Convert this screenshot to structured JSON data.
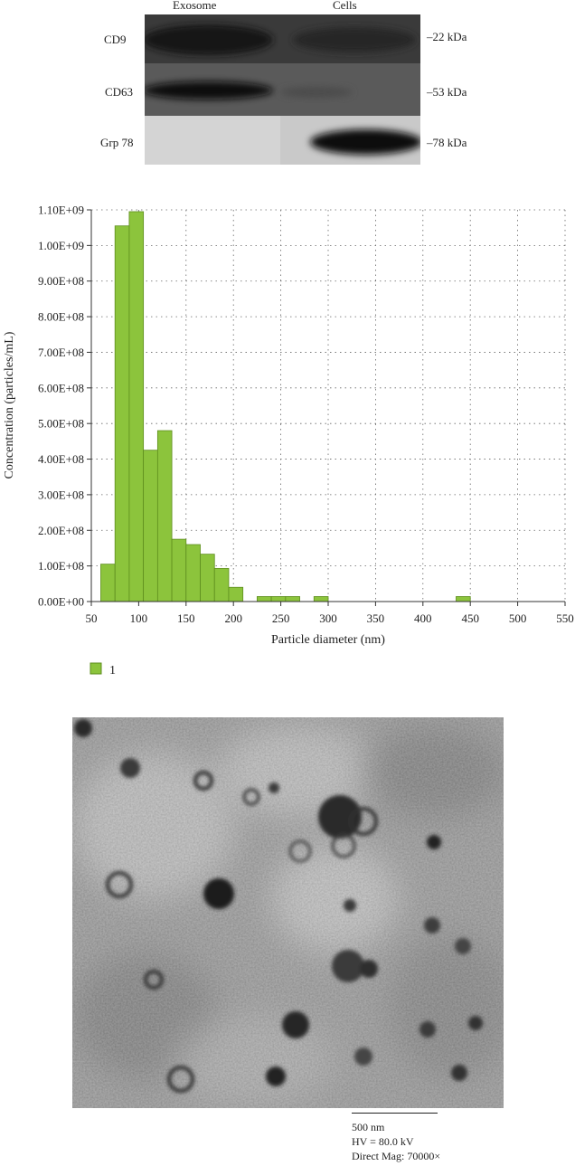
{
  "blot": {
    "columns": [
      "Exosome",
      "Cells"
    ],
    "rows": [
      {
        "name": "CD9",
        "marker": "–22 kDa"
      },
      {
        "name": "CD63",
        "marker": "–53 kDa"
      },
      {
        "name": "Grp 78",
        "marker": "–78 kDa"
      }
    ]
  },
  "chart_data": {
    "type": "bar",
    "title": "",
    "xlabel": "Particle diameter (nm)",
    "ylabel": "Concentration (particles/mL)",
    "xlim": [
      50,
      550
    ],
    "ylim": [
      0,
      1100000000
    ],
    "x_ticks": [
      "50",
      "100",
      "150",
      "200",
      "250",
      "300",
      "350",
      "400",
      "450",
      "500",
      "550"
    ],
    "y_ticks": [
      "0.00E+00",
      "1.00E+08",
      "2.00E+08",
      "3.00E+08",
      "4.00E+08",
      "5.00E+08",
      "6.00E+08",
      "7.00E+08",
      "8.00E+08",
      "9.00E+08",
      "1.00E+09",
      "1.10E+09"
    ],
    "grid": true,
    "legend_position": "bottom-left",
    "bar_color": "#8cc43c",
    "bar_edge_color": "#5e8e1e",
    "series": [
      {
        "name": "1",
        "bins": [
          {
            "x0": 60,
            "x1": 75,
            "value": 105000000
          },
          {
            "x0": 75,
            "x1": 90,
            "value": 1055000000
          },
          {
            "x0": 90,
            "x1": 105,
            "value": 1095000000
          },
          {
            "x0": 105,
            "x1": 120,
            "value": 425000000
          },
          {
            "x0": 120,
            "x1": 135,
            "value": 480000000
          },
          {
            "x0": 135,
            "x1": 150,
            "value": 175000000
          },
          {
            "x0": 150,
            "x1": 165,
            "value": 160000000
          },
          {
            "x0": 165,
            "x1": 180,
            "value": 133000000
          },
          {
            "x0": 180,
            "x1": 195,
            "value": 93000000
          },
          {
            "x0": 195,
            "x1": 210,
            "value": 40000000
          },
          {
            "x0": 225,
            "x1": 240,
            "value": 14000000
          },
          {
            "x0": 240,
            "x1": 255,
            "value": 14000000
          },
          {
            "x0": 255,
            "x1": 270,
            "value": 14000000
          },
          {
            "x0": 285,
            "x1": 300,
            "value": 14000000
          },
          {
            "x0": 435,
            "x1": 450,
            "value": 14000000
          }
        ]
      }
    ]
  },
  "tem": {
    "scale_label": "500 nm",
    "voltage": "HV = 80.0 kV",
    "magnification": "Direct Mag: 70000×"
  }
}
